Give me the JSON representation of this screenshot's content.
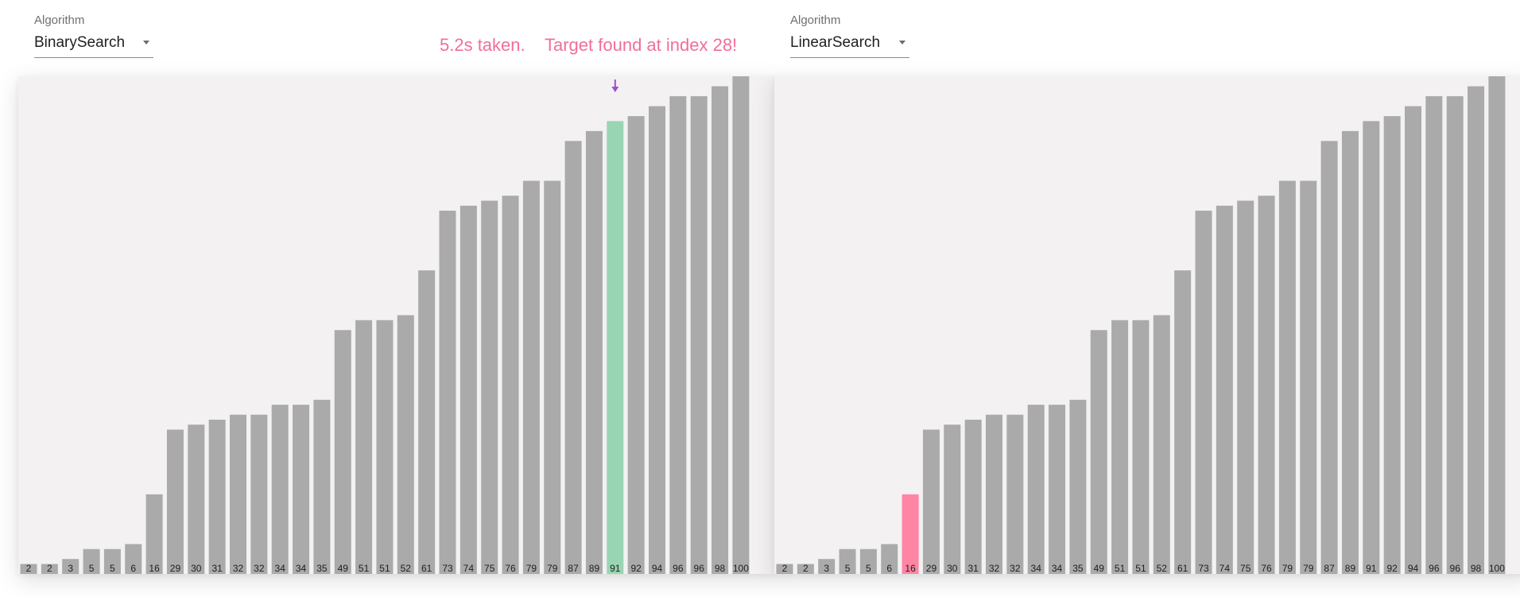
{
  "panels": [
    {
      "id": "left",
      "algorithm_caption": "Algorithm",
      "algorithm_selected": "BinarySearch",
      "status_time": "5.2s taken.",
      "status_message": "Target found at index 28!",
      "highlight_index": 28,
      "highlight_color": "#98d6b3",
      "pointer_index": 28,
      "pointer_color": "#9b4fd0"
    },
    {
      "id": "right",
      "algorithm_caption": "Algorithm",
      "algorithm_selected": "LinearSearch",
      "status_time": "",
      "status_message": "",
      "highlight_index": 6,
      "highlight_color": "#ff85a5",
      "pointer_index": null,
      "pointer_color": ""
    }
  ],
  "colors": {
    "bar": "#aaaaaa",
    "status_text": "#ef6f9c",
    "chart_background": "#f3f1f2"
  },
  "icons": {
    "dropdown": "triangle-down",
    "pointer": "down-arrow"
  },
  "chart_data": [
    {
      "type": "bar",
      "title": "",
      "xlabel": "",
      "ylabel": "",
      "ylim": [
        0,
        100
      ],
      "grid": false,
      "categories": [
        "2",
        "2",
        "3",
        "5",
        "5",
        "6",
        "16",
        "29",
        "30",
        "31",
        "32",
        "32",
        "34",
        "34",
        "35",
        "49",
        "51",
        "51",
        "52",
        "61",
        "73",
        "74",
        "75",
        "76",
        "79",
        "79",
        "87",
        "89",
        "91",
        "92",
        "94",
        "96",
        "96",
        "98",
        "100"
      ],
      "values": [
        2,
        2,
        3,
        5,
        5,
        6,
        16,
        29,
        30,
        31,
        32,
        32,
        34,
        34,
        35,
        49,
        51,
        51,
        52,
        61,
        73,
        74,
        75,
        76,
        79,
        79,
        87,
        89,
        91,
        92,
        94,
        96,
        96,
        98,
        100
      ],
      "highlighted_index": 28
    },
    {
      "type": "bar",
      "title": "",
      "xlabel": "",
      "ylabel": "",
      "ylim": [
        0,
        100
      ],
      "grid": false,
      "categories": [
        "2",
        "2",
        "3",
        "5",
        "5",
        "6",
        "16",
        "29",
        "30",
        "31",
        "32",
        "32",
        "34",
        "34",
        "35",
        "49",
        "51",
        "51",
        "52",
        "61",
        "73",
        "74",
        "75",
        "76",
        "79",
        "79",
        "87",
        "89",
        "91",
        "92",
        "94",
        "96",
        "96",
        "98",
        "100"
      ],
      "values": [
        2,
        2,
        3,
        5,
        5,
        6,
        16,
        29,
        30,
        31,
        32,
        32,
        34,
        34,
        35,
        49,
        51,
        51,
        52,
        61,
        73,
        74,
        75,
        76,
        79,
        79,
        87,
        89,
        91,
        92,
        94,
        96,
        96,
        98,
        100
      ],
      "highlighted_index": 6
    }
  ]
}
